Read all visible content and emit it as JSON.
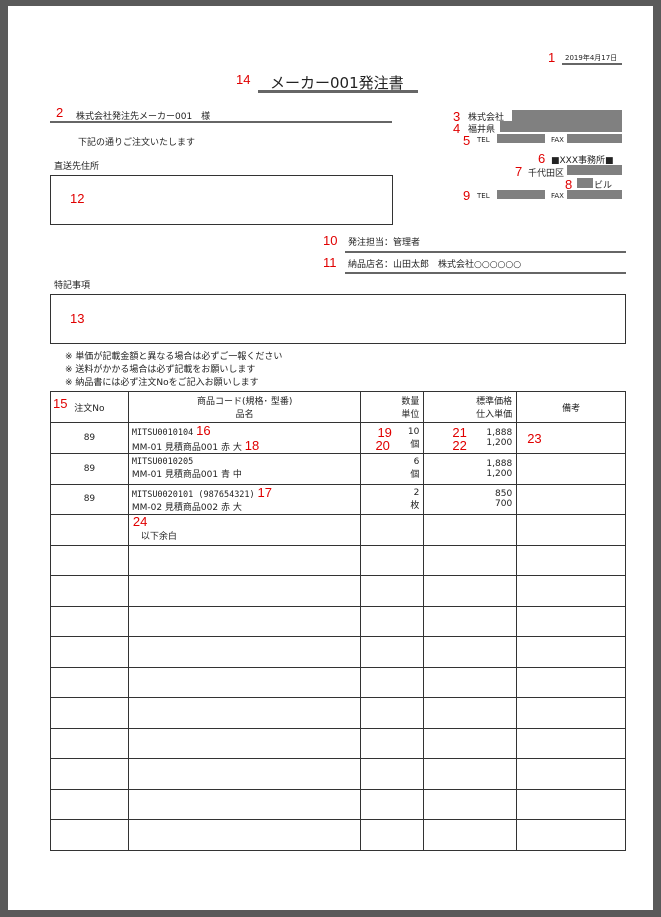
{
  "annotations": {
    "n1": "1",
    "n2": "2",
    "n3": "3",
    "n4": "4",
    "n5": "5",
    "n6": "6",
    "n7": "7",
    "n8": "8",
    "n9": "9",
    "n10": "10",
    "n11": "11",
    "n12": "12",
    "n13": "13",
    "n14": "14",
    "n15": "15",
    "n16": "16",
    "n17": "17",
    "n18": "18",
    "n19": "19",
    "n20": "20",
    "n21": "21",
    "n22": "22",
    "n23": "23",
    "n24": "24"
  },
  "date": "2019年4月17日",
  "title": "メーカー001発注書",
  "recipient": "株式会社発注先メーカー001　様",
  "intro": "下記の通りご注文いたします",
  "ship_to_label": "直送先住所",
  "sender": {
    "company": "株式会社",
    "pref": "福井県",
    "tel": "TEL",
    "fax": "FAX",
    "office": "■XXX事務所■",
    "ward": "千代田区",
    "building": "ビル",
    "tel2": "TEL",
    "fax2": "FAX"
  },
  "person": "発注担当：管理者",
  "store": "納品店名：山田太郎　株式会社○○○○○○",
  "remarks_label": "特記事項",
  "notes": [
    "※ 単価が記載金額と異なる場合は必ずご一報ください",
    "※ 送料がかかる場合は必ず記載をお願いします",
    "※ 納品書には必ず注文Noをご記入お願いします"
  ],
  "table": {
    "headers": {
      "order_no": "注文No",
      "code": "商品コード(規格･ 型番)",
      "name": "品名",
      "qty": "数量",
      "unit": "単位",
      "std_price": "標準価格",
      "cost": "仕入単価",
      "note": "備考"
    },
    "rows": [
      {
        "order_no": "89",
        "code": "MITSU0010104",
        "name": "MM-01 見積商品001 赤 大",
        "qty": "10",
        "unit": "個",
        "std_price": "1,888",
        "cost": "1,200"
      },
      {
        "order_no": "89",
        "code": "MITSU0010205",
        "name": "MM-01 見積商品001 青 中",
        "qty": "6",
        "unit": "個",
        "std_price": "1,888",
        "cost": "1,200"
      },
      {
        "order_no": "89",
        "code": "MITSU0020101 (987654321)",
        "name": "MM-02 見積商品002 赤 大",
        "qty": "2",
        "unit": "枚",
        "std_price": "850",
        "cost": "700"
      }
    ],
    "end_mark": "以下余白"
  }
}
